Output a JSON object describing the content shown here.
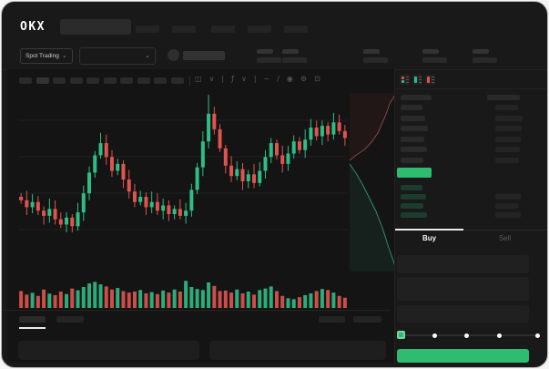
{
  "brand": {
    "logo": "OKX"
  },
  "header": {
    "market_type": "Spot Trading"
  },
  "orderbook": {
    "buy_tab": "Buy",
    "sell_tab": "Sell",
    "view_toggles": [
      "combined-book-view",
      "bids-only-view",
      "asks-only-view"
    ],
    "asks": [
      [
        1,
        1
      ],
      [
        1,
        1
      ],
      [
        1,
        1
      ],
      [
        1,
        1
      ],
      [
        1,
        1
      ],
      [
        1,
        1
      ]
    ],
    "bids": [
      [
        1,
        0
      ],
      [
        1,
        1
      ],
      [
        1,
        1
      ],
      [
        1,
        1
      ]
    ],
    "amount_slider": {
      "value_percent": 0,
      "stops_percent": [
        0,
        25,
        50,
        75,
        100
      ]
    }
  },
  "skeleton_counts": {
    "nav_items": 5,
    "timeframes": 10,
    "ticker_stats": 5
  },
  "toolbar_icons": [
    {
      "name": "candle-style-icon",
      "glyph": "◫",
      "interactable": true
    },
    {
      "name": "chevron-down-icon",
      "glyph": "∨",
      "interactable": true
    },
    {
      "name": "toolbar-divider",
      "glyph": "|",
      "interactable": false
    },
    {
      "name": "indicators-icon",
      "glyph": "ƒ",
      "interactable": true
    },
    {
      "name": "chevron-down-icon",
      "glyph": "∨",
      "interactable": true
    },
    {
      "name": "toolbar-divider",
      "glyph": "|",
      "interactable": false
    },
    {
      "name": "line-tool-icon",
      "glyph": "~",
      "interactable": true
    },
    {
      "name": "draw-tool-icon",
      "glyph": "/",
      "interactable": true
    },
    {
      "name": "screenshot-camera-icon",
      "glyph": "◉",
      "interactable": true
    },
    {
      "name": "settings-gear-icon",
      "glyph": "⚙",
      "interactable": true
    },
    {
      "name": "fullscreen-icon",
      "glyph": "⊡",
      "interactable": true
    }
  ],
  "colors": {
    "up_green": "#2ebd85",
    "down_red": "#e0544f",
    "accent_green": "#2ebd70",
    "depth_ask_line": "#8a4444",
    "depth_bid_line": "#2e8f6e",
    "grid": "#1f1f1f",
    "tab_active_underline": "#ececec"
  },
  "chart_data": {
    "type": "candlestick",
    "first_open": 40,
    "closes": [
      38,
      34,
      37,
      32,
      29,
      33,
      27,
      24,
      28,
      23,
      31,
      42,
      54,
      64,
      71,
      63,
      55,
      59,
      50,
      43,
      37,
      40,
      34,
      37,
      32,
      35,
      30,
      33,
      29,
      32,
      44,
      57,
      72,
      88,
      79,
      68,
      58,
      52,
      56,
      49,
      53,
      48,
      55,
      63,
      71,
      64,
      59,
      65,
      72,
      67,
      73,
      80,
      75,
      81,
      76,
      83,
      78,
      74
    ],
    "volumes": [
      52,
      38,
      45,
      33,
      58,
      42,
      36,
      50,
      40,
      62,
      55,
      68,
      82,
      88,
      78,
      70,
      58,
      64,
      52,
      46,
      50,
      56,
      43,
      48,
      40,
      54,
      46,
      58,
      50,
      92,
      68,
      60,
      56,
      86,
      72,
      52,
      54,
      46,
      58,
      43,
      50,
      38,
      56,
      62,
      70,
      52,
      33,
      24,
      20,
      28,
      36,
      43,
      52,
      60,
      56,
      46,
      33,
      26
    ],
    "ylim": [
      0,
      100
    ],
    "grid": true,
    "depth_profile": {
      "asks_line": [
        [
          1,
          0.03
        ],
        [
          0.88,
          0.08
        ],
        [
          0.78,
          0.15
        ],
        [
          0.62,
          0.24
        ],
        [
          0.48,
          0.29
        ],
        [
          0.33,
          0.33
        ],
        [
          0.15,
          0.36
        ],
        [
          0,
          0.39
        ]
      ],
      "bids_line": [
        [
          0,
          0.41
        ],
        [
          0.14,
          0.46
        ],
        [
          0.28,
          0.52
        ],
        [
          0.44,
          0.6
        ],
        [
          0.58,
          0.67
        ],
        [
          0.72,
          0.76
        ],
        [
          0.86,
          0.87
        ],
        [
          1,
          0.97
        ]
      ]
    }
  }
}
